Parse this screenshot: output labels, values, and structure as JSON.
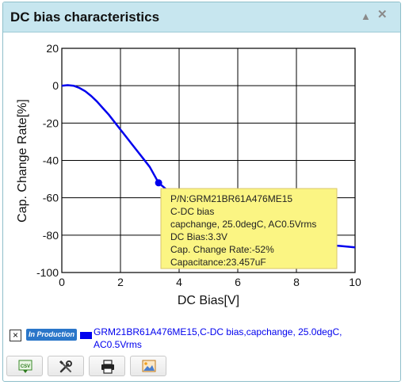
{
  "window": {
    "title": "DC bias characteristics",
    "collapse_icon": "triangle-up-icon",
    "close_icon": "close-icon"
  },
  "chart_data": {
    "type": "line",
    "xlabel": "DC Bias[V]",
    "ylabel": "Cap. Change Rate[%]",
    "xlim": [
      0,
      10
    ],
    "ylim": [
      -100,
      20
    ],
    "xticks": [
      "0",
      "2",
      "4",
      "6",
      "8",
      "10"
    ],
    "yticks": [
      "20",
      "0",
      "-20",
      "-40",
      "-60",
      "-80",
      "-100"
    ],
    "grid": true,
    "series": [
      {
        "name": "GRM21BR61A476ME15,C-DC bias,capchange, 25.0degC, AC0.5Vrms",
        "color": "#0000ee",
        "x": [
          0,
          0.2,
          0.4,
          0.6,
          0.8,
          1.0,
          1.2,
          1.4,
          1.6,
          1.8,
          2.0,
          2.2,
          2.4,
          2.6,
          2.8,
          3.0,
          3.3,
          3.6,
          4.0,
          4.5,
          5.0,
          5.5,
          6.0,
          6.5,
          7.0,
          7.5,
          8.0,
          8.5,
          9.0,
          9.5,
          10.0
        ],
        "y": [
          0,
          0.3,
          0,
          -1.2,
          -3,
          -5.5,
          -8.5,
          -12,
          -15.5,
          -19.5,
          -23.5,
          -27.5,
          -31.5,
          -35.5,
          -39.5,
          -43.5,
          -52,
          -56,
          -61,
          -66,
          -70,
          -73.5,
          -76.5,
          -79,
          -81,
          -82.5,
          -83.5,
          -84.5,
          -85.2,
          -85.8,
          -86.5
        ]
      }
    ],
    "highlight_point": {
      "x": 3.3,
      "y": -52
    }
  },
  "tooltip": {
    "lines": [
      "P/N:GRM21BR61A476ME15",
      "C-DC bias",
      "capchange, 25.0degC, AC0.5Vrms",
      "DC Bias:3.3V",
      "Cap. Change Rate:-52%",
      "Capacitance:23.457uF"
    ]
  },
  "legend": {
    "close_label": "×",
    "badge_label": "In Production",
    "entry_text": "GRM21BR61A476ME15,C-DC bias,capchange, 25.0degC, AC0.5Vrms"
  },
  "toolbar": {
    "buttons": [
      {
        "icon": "csv-download-icon"
      },
      {
        "icon": "settings-tools-icon"
      },
      {
        "icon": "print-icon"
      },
      {
        "icon": "image-export-icon"
      }
    ]
  }
}
